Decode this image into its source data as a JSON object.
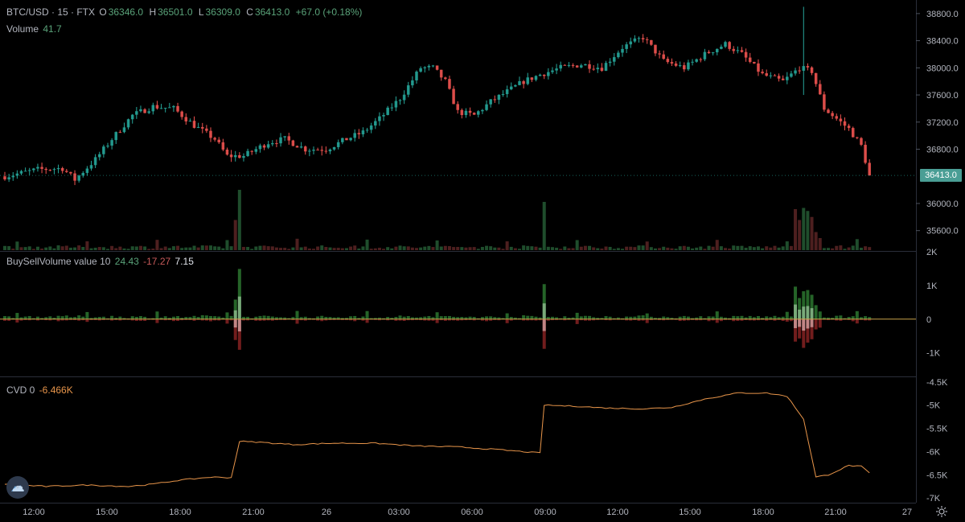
{
  "header": {
    "symbol": "BTC/USD · 15 · FTX",
    "o_label": "O",
    "o_value": "36346.0",
    "h_label": "H",
    "h_value": "36501.0",
    "l_label": "L",
    "l_value": "36309.0",
    "c_label": "C",
    "c_value": "36413.0",
    "change": "+67.0 (+0.18%)"
  },
  "volume_legend": {
    "label": "Volume",
    "value": "41.7"
  },
  "bsv_legend": {
    "label": "BuySellVolume value 10",
    "buy": "24.43",
    "sell": "-17.27",
    "net": "7.15"
  },
  "cvd_legend": {
    "label": "CVD 0",
    "value": "-6.466K"
  },
  "last_price_tag": "36413.0",
  "icons": {
    "logo": "cloud-logo-icon",
    "settings": "gear-icon"
  },
  "colors": {
    "up": "#26a69a",
    "down": "#ef5350",
    "cvd_line": "#e8954a",
    "background": "#000000"
  },
  "chart_data": [
    {
      "type": "candlestick",
      "pane": "price",
      "price_axis": {
        "ticks": [
          "38800.0",
          "38400.0",
          "38000.0",
          "37600.0",
          "37200.0",
          "36800.0",
          "36000.0",
          "35600.0"
        ],
        "range": [
          35300,
          39000
        ]
      },
      "time_axis": {
        "ticks": [
          "12:00",
          "15:00",
          "18:00",
          "21:00",
          "26",
          "03:00",
          "06:00",
          "09:00",
          "12:00",
          "15:00",
          "18:00",
          "21:00",
          "27"
        ]
      },
      "series": [
        {
          "name": "BTC/USD",
          "keyframes": [
            [
              0,
              36400
            ],
            [
              8,
              36500
            ],
            [
              14,
              36520
            ],
            [
              17,
              36350
            ],
            [
              22,
              36650
            ],
            [
              26,
              36950
            ],
            [
              31,
              37300
            ],
            [
              36,
              37430
            ],
            [
              41,
              37400
            ],
            [
              46,
              37150
            ],
            [
              51,
              36950
            ],
            [
              54,
              36700
            ],
            [
              58,
              36700
            ],
            [
              64,
              36900
            ],
            [
              68,
              36950
            ],
            [
              73,
              36800
            ],
            [
              78,
              36800
            ],
            [
              83,
              36950
            ],
            [
              87,
              37050
            ],
            [
              91,
              37250
            ],
            [
              96,
              37550
            ],
            [
              101,
              38000
            ],
            [
              104,
              38000
            ],
            [
              107,
              37800
            ],
            [
              110,
              37350
            ],
            [
              114,
              37300
            ],
            [
              118,
              37500
            ],
            [
              122,
              37650
            ],
            [
              126,
              37800
            ],
            [
              130,
              37900
            ],
            [
              135,
              38000
            ],
            [
              140,
              38050
            ],
            [
              145,
              38000
            ],
            [
              150,
              38300
            ],
            [
              155,
              38450
            ],
            [
              160,
              38100
            ],
            [
              165,
              38000
            ],
            [
              170,
              38200
            ],
            [
              175,
              38350
            ],
            [
              179,
              38200
            ],
            [
              184,
              37900
            ],
            [
              189,
              37800
            ],
            [
              193,
              38000
            ],
            [
              196,
              37950
            ],
            [
              199,
              37400
            ],
            [
              202,
              37250
            ],
            [
              205,
              37100
            ],
            [
              208,
              36850
            ],
            [
              210,
              36413
            ]
          ]
        }
      ]
    },
    {
      "type": "bar",
      "pane": "volume",
      "series": [
        {
          "name": "Volume",
          "last": 41.7
        }
      ]
    },
    {
      "type": "bar",
      "pane": "buy-sell-volume",
      "y_ticks": [
        "2K",
        "1K",
        "0",
        "-1K"
      ],
      "range": [
        -1700,
        2000
      ],
      "series": [
        {
          "name": "Buy",
          "last": 24.43
        },
        {
          "name": "Sell",
          "last": -17.27
        },
        {
          "name": "Net",
          "last": 7.15
        }
      ]
    },
    {
      "type": "line",
      "pane": "cvd",
      "y_ticks": [
        "-4.5K",
        "-5K",
        "-5.5K",
        "-6K",
        "-6.5K",
        "-7K"
      ],
      "range": [
        -7100,
        -4400
      ],
      "series": [
        {
          "name": "CVD",
          "keyframes": [
            [
              0,
              -6700
            ],
            [
              10,
              -6750
            ],
            [
              20,
              -6720
            ],
            [
              30,
              -6750
            ],
            [
              36,
              -6700
            ],
            [
              42,
              -6620
            ],
            [
              50,
              -6550
            ],
            [
              55,
              -6560
            ],
            [
              57,
              -5780
            ],
            [
              62,
              -5800
            ],
            [
              70,
              -5850
            ],
            [
              80,
              -5820
            ],
            [
              90,
              -5820
            ],
            [
              100,
              -5880
            ],
            [
              110,
              -5900
            ],
            [
              120,
              -5960
            ],
            [
              130,
              -6030
            ],
            [
              131,
              -5000
            ],
            [
              140,
              -5030
            ],
            [
              145,
              -5060
            ],
            [
              155,
              -5080
            ],
            [
              162,
              -5050
            ],
            [
              170,
              -4870
            ],
            [
              178,
              -4740
            ],
            [
              185,
              -4740
            ],
            [
              190,
              -4810
            ],
            [
              194,
              -5300
            ],
            [
              197,
              -6550
            ],
            [
              200,
              -6500
            ],
            [
              205,
              -6300
            ],
            [
              208,
              -6320
            ],
            [
              210,
              -6466
            ]
          ]
        }
      ]
    }
  ]
}
